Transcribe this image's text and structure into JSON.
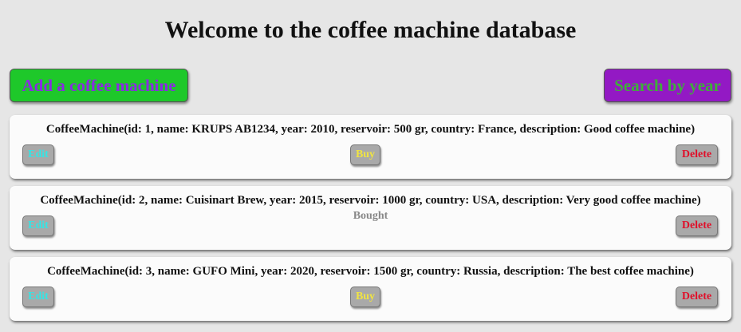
{
  "header": {
    "title": "Welcome to the coffee machine database"
  },
  "toolbar": {
    "add_label": "Add a coffee machine",
    "search_label": "Search by year"
  },
  "machines": [
    {
      "text": "CoffeeMachine(id: 1, name: KRUPS AB1234, year: 2010, reservoir: 500 gr, country: France, description: Good coffee machine)",
      "edit_label": "Edit",
      "buy_label": "Buy",
      "status": "",
      "delete_label": "Delete"
    },
    {
      "text": "CoffeeMachine(id: 2, name: Cuisinart Brew, year: 2015, reservoir: 1000 gr, country: USA, description: Very good coffee machine)",
      "edit_label": "Edit",
      "buy_label": "",
      "status": "Bought",
      "delete_label": "Delete"
    },
    {
      "text": "CoffeeMachine(id: 3, name: GUFO Mini, year: 2020, reservoir: 1500 gr, country: Russia, description: The best coffee machine)",
      "edit_label": "Edit",
      "buy_label": "Buy",
      "status": "",
      "delete_label": "Delete"
    }
  ],
  "colors": {
    "background": "#e6e6e6",
    "add_button_bg": "#1ec82a",
    "add_button_text": "#8a2be2",
    "search_button_bg": "#9319c4",
    "search_button_text": "#3fae3a",
    "edit_text": "#33e6e6",
    "buy_text": "#f0e442",
    "delete_text": "#e0102a",
    "bought_text": "#888888"
  }
}
